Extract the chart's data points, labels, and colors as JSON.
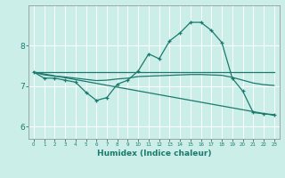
{
  "xlabel": "Humidex (Indice chaleur)",
  "xlim": [
    -0.5,
    23.5
  ],
  "ylim": [
    5.7,
    9.0
  ],
  "yticks": [
    6,
    7,
    8
  ],
  "xticks": [
    0,
    1,
    2,
    3,
    4,
    5,
    6,
    7,
    8,
    9,
    10,
    11,
    12,
    13,
    14,
    15,
    16,
    17,
    18,
    19,
    20,
    21,
    22,
    23
  ],
  "bg_color": "#cceee8",
  "line_color": "#1a7a6e",
  "grid_color": "#ffffff",
  "line1_x": [
    0,
    1,
    2,
    3,
    4,
    5,
    6,
    7,
    8,
    9,
    10,
    11,
    12,
    13,
    14,
    15,
    16,
    17,
    18,
    19,
    20,
    21,
    22,
    23
  ],
  "line1_y": [
    7.35,
    7.2,
    7.2,
    7.15,
    7.1,
    6.85,
    6.65,
    6.72,
    7.05,
    7.15,
    7.38,
    7.8,
    7.68,
    8.12,
    8.32,
    8.58,
    8.58,
    8.38,
    8.08,
    7.2,
    6.88,
    6.35,
    6.32,
    6.3
  ],
  "line2_x": [
    0,
    1,
    2,
    3,
    4,
    5,
    6,
    7,
    8,
    9,
    10,
    11,
    12,
    13,
    14,
    15,
    16,
    17,
    18,
    19,
    20,
    21,
    22,
    23
  ],
  "line2_y": [
    7.35,
    7.28,
    7.25,
    7.23,
    7.2,
    7.17,
    7.14,
    7.15,
    7.18,
    7.2,
    7.24,
    7.25,
    7.26,
    7.27,
    7.28,
    7.29,
    7.29,
    7.28,
    7.27,
    7.22,
    7.15,
    7.08,
    7.04,
    7.02
  ],
  "line3_x": [
    0,
    1,
    2,
    3,
    4,
    5,
    6,
    7,
    8,
    9,
    10,
    11,
    12,
    13,
    14,
    15,
    16,
    17,
    18,
    19,
    20,
    21,
    22,
    23
  ],
  "line3_y": [
    7.35,
    7.35,
    7.35,
    7.35,
    7.35,
    7.35,
    7.35,
    7.35,
    7.35,
    7.35,
    7.35,
    7.35,
    7.35,
    7.35,
    7.35,
    7.35,
    7.35,
    7.35,
    7.35,
    7.35,
    7.35,
    7.35,
    7.35,
    7.35
  ],
  "line4_x": [
    0,
    23
  ],
  "line4_y": [
    7.35,
    6.28
  ]
}
